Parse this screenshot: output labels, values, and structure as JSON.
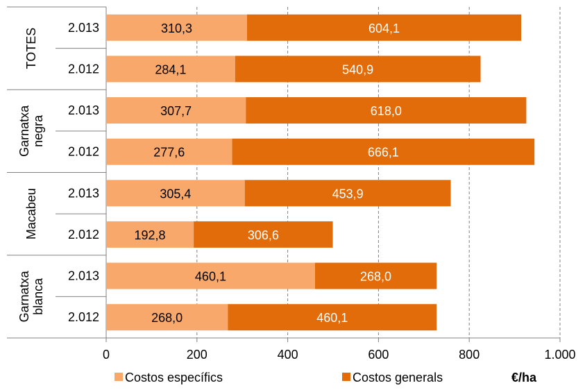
{
  "chart_data": {
    "type": "bar",
    "orientation": "horizontal",
    "stacked": true,
    "groups": [
      {
        "name": [
          "TOTES"
        ],
        "rows": [
          {
            "year": "2.013",
            "values": [
              310.3,
              604.1
            ],
            "labels": [
              "310,3",
              "604,1"
            ]
          },
          {
            "year": "2.012",
            "values": [
              284.1,
              540.9
            ],
            "labels": [
              "284,1",
              "540,9"
            ]
          }
        ]
      },
      {
        "name": [
          "Garnatxa",
          "negra"
        ],
        "rows": [
          {
            "year": "2.013",
            "values": [
              307.7,
              618.0
            ],
            "labels": [
              "307,7",
              "618,0"
            ]
          },
          {
            "year": "2.012",
            "values": [
              277.6,
              666.1
            ],
            "labels": [
              "277,6",
              "666,1"
            ]
          }
        ]
      },
      {
        "name": [
          "Macabeu"
        ],
        "rows": [
          {
            "year": "2.013",
            "values": [
              305.4,
              453.9
            ],
            "labels": [
              "305,4",
              "453,9"
            ]
          },
          {
            "year": "2.012",
            "values": [
              192.8,
              306.6
            ],
            "labels": [
              "192,8",
              "306,6"
            ]
          }
        ]
      },
      {
        "name": [
          "Garnatxa",
          "blanca"
        ],
        "rows": [
          {
            "year": "2.013",
            "values": [
              460.1,
              268.0
            ],
            "labels": [
              "460,1",
              "268,0"
            ]
          },
          {
            "year": "2.012",
            "values": [
              268.0,
              460.1
            ],
            "labels": [
              "268,0",
              "460,1"
            ]
          }
        ]
      }
    ],
    "series": [
      {
        "name": "Costos específics",
        "color": "#F8A86A",
        "label_color": "#000000"
      },
      {
        "name": "Costos generals",
        "color": "#E36C0A",
        "label_color": "#FFFFFF"
      }
    ],
    "xlim": [
      0,
      1000
    ],
    "xticks": [
      0,
      200,
      400,
      600,
      800,
      1000
    ],
    "xtick_labels": [
      "0",
      "200",
      "400",
      "600",
      "800",
      "1.000"
    ],
    "unit_label": "€/ha",
    "grid": "vertical dashed",
    "legend_position": "bottom"
  }
}
